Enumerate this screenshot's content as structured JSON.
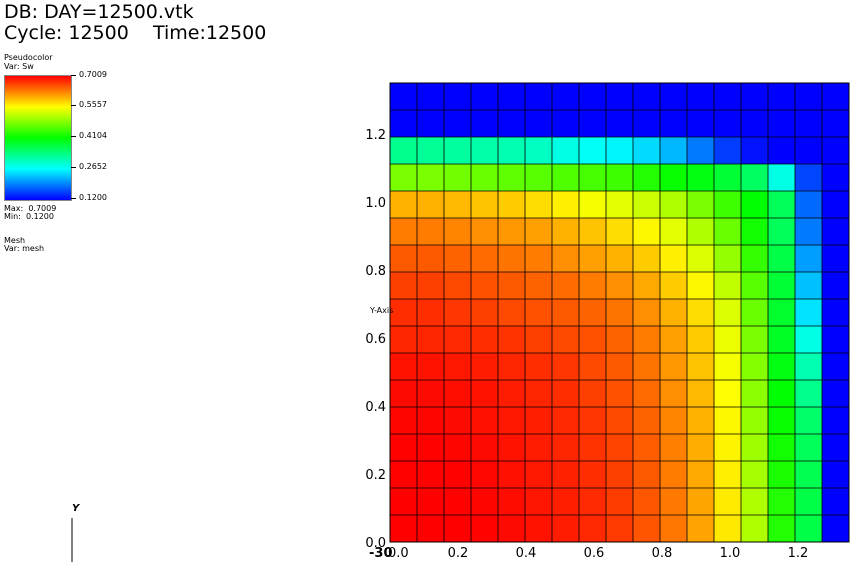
{
  "header": {
    "db": "DB: DAY=12500.vtk",
    "cycle": "Cycle: 12500",
    "time": "Time:12500"
  },
  "legend": {
    "pseudocolor_title": "Pseudocolor",
    "pseudocolor_var": "Var: Sw",
    "colorbar_ticks": [
      "0.7009",
      "0.5557",
      "0.4104",
      "0.2652",
      "0.1200"
    ],
    "max_label": "Max:  0.7009",
    "min_label": "Min:  0.1200",
    "mesh_title": "Mesh",
    "mesh_var": "Var: mesh",
    "colormap": [
      "#ff0000",
      "#ffff00",
      "#00ff00",
      "#00ffff",
      "#0000ff"
    ]
  },
  "triad": {
    "y_label": "Y"
  },
  "chart_data": {
    "type": "heatmap",
    "variable": "Sw",
    "x_ticks": [
      "0.0",
      "0.2",
      "0.4",
      "0.6",
      "0.8",
      "1.0",
      "1.2"
    ],
    "y_ticks": [
      "0.0",
      "0.2",
      "0.4",
      "0.6",
      "0.8",
      "1.0",
      "1.2"
    ],
    "ylabel": "Y-Axis",
    "x_overlap_label": "-30",
    "xlim": [
      0,
      1.35
    ],
    "ylim": [
      0,
      1.35
    ],
    "vmin": 0.12,
    "vmax": 0.7009,
    "grid": true,
    "cols": 17,
    "rows": 17,
    "values": [
      [
        0.12,
        0.12,
        0.12,
        0.12,
        0.12,
        0.12,
        0.12,
        0.12,
        0.12,
        0.12,
        0.12,
        0.12,
        0.12,
        0.12,
        0.12,
        0.12,
        0.12
      ],
      [
        0.12,
        0.12,
        0.12,
        0.12,
        0.12,
        0.12,
        0.12,
        0.12,
        0.12,
        0.12,
        0.12,
        0.12,
        0.12,
        0.12,
        0.12,
        0.12,
        0.12
      ],
      [
        0.33,
        0.325,
        0.32,
        0.315,
        0.31,
        0.3,
        0.28,
        0.27,
        0.26,
        0.245,
        0.225,
        0.19,
        0.155,
        0.13,
        0.12,
        0.12,
        0.12
      ],
      [
        0.48,
        0.48,
        0.475,
        0.47,
        0.465,
        0.46,
        0.455,
        0.45,
        0.445,
        0.43,
        0.415,
        0.4,
        0.38,
        0.355,
        0.28,
        0.16,
        0.12
      ],
      [
        0.6,
        0.6,
        0.595,
        0.59,
        0.585,
        0.575,
        0.565,
        0.55,
        0.54,
        0.525,
        0.51,
        0.48,
        0.445,
        0.41,
        0.36,
        0.18,
        0.12
      ],
      [
        0.63,
        0.63,
        0.625,
        0.62,
        0.615,
        0.61,
        0.6,
        0.59,
        0.575,
        0.56,
        0.54,
        0.51,
        0.47,
        0.42,
        0.36,
        0.19,
        0.12
      ],
      [
        0.65,
        0.65,
        0.645,
        0.64,
        0.635,
        0.63,
        0.62,
        0.61,
        0.6,
        0.585,
        0.565,
        0.535,
        0.495,
        0.44,
        0.37,
        0.21,
        0.12
      ],
      [
        0.665,
        0.665,
        0.66,
        0.655,
        0.65,
        0.645,
        0.64,
        0.63,
        0.62,
        0.605,
        0.585,
        0.56,
        0.52,
        0.46,
        0.38,
        0.23,
        0.12
      ],
      [
        0.675,
        0.675,
        0.67,
        0.665,
        0.66,
        0.655,
        0.65,
        0.645,
        0.635,
        0.62,
        0.6,
        0.575,
        0.535,
        0.47,
        0.385,
        0.25,
        0.12
      ],
      [
        0.68,
        0.68,
        0.678,
        0.675,
        0.672,
        0.665,
        0.66,
        0.655,
        0.645,
        0.63,
        0.61,
        0.585,
        0.545,
        0.48,
        0.39,
        0.28,
        0.12
      ],
      [
        0.69,
        0.69,
        0.688,
        0.685,
        0.68,
        0.675,
        0.67,
        0.66,
        0.65,
        0.635,
        0.615,
        0.59,
        0.55,
        0.485,
        0.4,
        0.31,
        0.12
      ],
      [
        0.695,
        0.695,
        0.693,
        0.69,
        0.685,
        0.68,
        0.675,
        0.665,
        0.655,
        0.64,
        0.62,
        0.595,
        0.555,
        0.49,
        0.41,
        0.33,
        0.12
      ],
      [
        0.698,
        0.698,
        0.695,
        0.692,
        0.688,
        0.683,
        0.678,
        0.67,
        0.66,
        0.645,
        0.625,
        0.6,
        0.56,
        0.495,
        0.415,
        0.35,
        0.12
      ],
      [
        0.7,
        0.7,
        0.698,
        0.695,
        0.69,
        0.685,
        0.68,
        0.672,
        0.662,
        0.648,
        0.628,
        0.602,
        0.562,
        0.5,
        0.42,
        0.36,
        0.12
      ],
      [
        0.7,
        0.7,
        0.7,
        0.697,
        0.692,
        0.687,
        0.682,
        0.675,
        0.665,
        0.65,
        0.63,
        0.605,
        0.565,
        0.505,
        0.425,
        0.365,
        0.12
      ],
      [
        0.7009,
        0.7009,
        0.7,
        0.698,
        0.694,
        0.689,
        0.684,
        0.677,
        0.667,
        0.652,
        0.632,
        0.607,
        0.567,
        0.51,
        0.43,
        0.37,
        0.12
      ],
      [
        0.7009,
        0.7009,
        0.7009,
        0.699,
        0.695,
        0.69,
        0.685,
        0.678,
        0.668,
        0.653,
        0.633,
        0.608,
        0.568,
        0.51,
        0.43,
        0.37,
        0.12
      ]
    ]
  }
}
